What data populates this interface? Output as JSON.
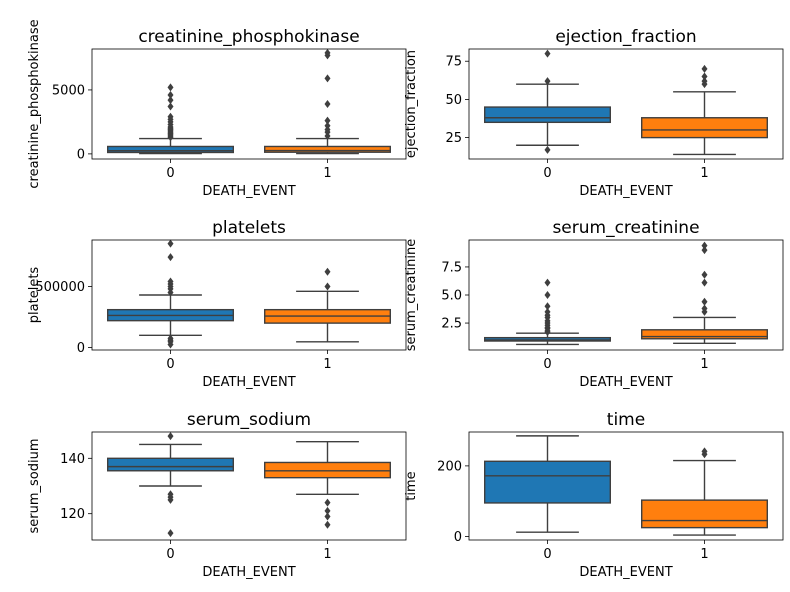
{
  "chart_data": [
    {
      "type": "box",
      "title": "creatinine_phosphokinase",
      "xlabel": "DEATH_EVENT",
      "ylabel": "creatinine_phosphokinase",
      "categories": [
        "0",
        "1"
      ],
      "ylim": [
        -400,
        8200
      ],
      "yticks": [
        0,
        5000
      ],
      "ytick_labels": [
        "0",
        "5000"
      ],
      "boxes": [
        {
          "category": "0",
          "color": "#1f77b4",
          "whislo": 30,
          "q1": 110,
          "median": 245,
          "q3": 580,
          "whishi": 1200,
          "fliers": [
            1300,
            1400,
            1500,
            1600,
            1700,
            1800,
            1900,
            2000,
            2100,
            2300,
            2500,
            2700,
            2900,
            3700,
            4200,
            4600,
            5200
          ]
        },
        {
          "category": "1",
          "color": "#ff7f0e",
          "whislo": 25,
          "q1": 130,
          "median": 260,
          "q3": 580,
          "whishi": 1200,
          "fliers": [
            1400,
            1700,
            1900,
            2200,
            2600,
            3900,
            5900,
            7700,
            7900
          ]
        }
      ]
    },
    {
      "type": "box",
      "title": "ejection_fraction",
      "xlabel": "DEATH_EVENT",
      "ylabel": "ejection_fraction",
      "categories": [
        "0",
        "1"
      ],
      "ylim": [
        11,
        83
      ],
      "yticks": [
        25,
        50,
        75
      ],
      "ytick_labels": [
        "25",
        "50",
        "75"
      ],
      "boxes": [
        {
          "category": "0",
          "color": "#1f77b4",
          "whislo": 20,
          "q1": 35,
          "median": 38,
          "q3": 45,
          "whishi": 60,
          "fliers": [
            17,
            62,
            80
          ]
        },
        {
          "category": "1",
          "color": "#ff7f0e",
          "whislo": 14,
          "q1": 25,
          "median": 30,
          "q3": 38,
          "whishi": 55,
          "fliers": [
            60,
            62,
            65,
            70
          ]
        }
      ]
    },
    {
      "type": "box",
      "title": "platelets",
      "xlabel": "DEATH_EVENT",
      "ylabel": "platelets",
      "categories": [
        "0",
        "1"
      ],
      "ylim": [
        -20000,
        880000
      ],
      "yticks": [
        0,
        500000
      ],
      "ytick_labels": [
        "0",
        "500000"
      ],
      "boxes": [
        {
          "category": "0",
          "color": "#1f77b4",
          "whislo": 100000,
          "q1": 220000,
          "median": 263000,
          "q3": 310000,
          "whishi": 430000,
          "fliers": [
            25000,
            47000,
            60000,
            75000,
            450000,
            480000,
            500000,
            520000,
            540000,
            740000,
            850000
          ]
        },
        {
          "category": "1",
          "color": "#ff7f0e",
          "whislo": 47000,
          "q1": 200000,
          "median": 258000,
          "q3": 310000,
          "whishi": 460000,
          "fliers": [
            500000,
            620000
          ]
        }
      ]
    },
    {
      "type": "box",
      "title": "serum_creatinine",
      "xlabel": "DEATH_EVENT",
      "ylabel": "serum_creatinine",
      "categories": [
        "0",
        "1"
      ],
      "ylim": [
        0.1,
        9.9
      ],
      "yticks": [
        2.5,
        5.0,
        7.5
      ],
      "ytick_labels": [
        "2.5",
        "5.0",
        "7.5"
      ],
      "boxes": [
        {
          "category": "0",
          "color": "#1f77b4",
          "whislo": 0.6,
          "q1": 0.9,
          "median": 1.0,
          "q3": 1.2,
          "whishi": 1.6,
          "fliers": [
            1.7,
            1.8,
            2.0,
            2.1,
            2.3,
            2.5,
            2.7,
            3.0,
            3.2,
            3.5,
            4.0,
            5.0,
            6.1
          ]
        },
        {
          "category": "1",
          "color": "#ff7f0e",
          "whislo": 0.7,
          "q1": 1.1,
          "median": 1.3,
          "q3": 1.9,
          "whishi": 3.0,
          "fliers": [
            3.5,
            3.8,
            4.4,
            6.1,
            6.8,
            9.0,
            9.4
          ]
        }
      ]
    },
    {
      "type": "box",
      "title": "serum_sodium",
      "xlabel": "DEATH_EVENT",
      "ylabel": "serum_sodium",
      "categories": [
        "0",
        "1"
      ],
      "ylim": [
        110.5,
        149.5
      ],
      "yticks": [
        120,
        140
      ],
      "ytick_labels": [
        "120",
        "140"
      ],
      "boxes": [
        {
          "category": "0",
          "color": "#1f77b4",
          "whislo": 130,
          "q1": 135.5,
          "median": 137,
          "q3": 140,
          "whishi": 145,
          "fliers": [
            113,
            125,
            126,
            127,
            148
          ]
        },
        {
          "category": "1",
          "color": "#ff7f0e",
          "whislo": 127,
          "q1": 133,
          "median": 135.5,
          "q3": 138.5,
          "whishi": 146,
          "fliers": [
            116,
            119,
            121,
            124
          ]
        }
      ]
    },
    {
      "type": "box",
      "title": "time",
      "xlabel": "DEATH_EVENT",
      "ylabel": "time",
      "categories": [
        "0",
        "1"
      ],
      "ylim": [
        -10,
        296
      ],
      "yticks": [
        0,
        200
      ],
      "ytick_labels": [
        "0",
        "200"
      ],
      "boxes": [
        {
          "category": "0",
          "color": "#1f77b4",
          "whislo": 12,
          "q1": 95,
          "median": 172,
          "q3": 213,
          "whishi": 285,
          "fliers": []
        },
        {
          "category": "1",
          "color": "#ff7f0e",
          "whislo": 4,
          "q1": 25,
          "median": 45,
          "q3": 103,
          "whishi": 215,
          "fliers": [
            233,
            241
          ]
        }
      ]
    }
  ]
}
